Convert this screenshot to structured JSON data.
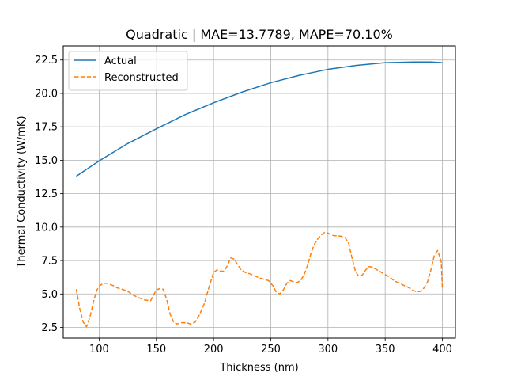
{
  "chart_data": {
    "type": "line",
    "title": "Quadratic | MAE=13.7789, MAPE=70.10%",
    "xlabel": "Thickness (nm)",
    "ylabel": "Thermal Conductivity (W/mK)",
    "xlim": [
      68.6,
      411.4
    ],
    "ylim": [
      1.7,
      23.55
    ],
    "xticks": [
      100,
      150,
      200,
      250,
      300,
      350,
      400
    ],
    "yticks": [
      2.5,
      5.0,
      7.5,
      10.0,
      12.5,
      15.0,
      17.5,
      20.0,
      22.5
    ],
    "ytick_labels": [
      "2.5",
      "5.0",
      "7.5",
      "10.0",
      "12.5",
      "15.0",
      "17.5",
      "20.0",
      "22.5"
    ],
    "grid": true,
    "legend_position": "top-left",
    "series": [
      {
        "name": "Actual",
        "color": "#1f77b4",
        "style": "solid",
        "x": [
          80,
          100,
          125,
          150,
          175,
          200,
          225,
          250,
          275,
          300,
          325,
          350,
          375,
          390,
          400
        ],
        "y": [
          13.8,
          14.95,
          16.25,
          17.35,
          18.4,
          19.3,
          20.1,
          20.8,
          21.35,
          21.8,
          22.1,
          22.3,
          22.35,
          22.35,
          22.3
        ]
      },
      {
        "name": "Reconstructed",
        "color": "#ff7f0e",
        "style": "dashed",
        "x": [
          80,
          83,
          86,
          89,
          92,
          95,
          98,
          101,
          104,
          107,
          110,
          113,
          116,
          120,
          125,
          130,
          135,
          140,
          145,
          150,
          153,
          156,
          159,
          162,
          165,
          168,
          172,
          176,
          180,
          184,
          188,
          192,
          196,
          200,
          203,
          206,
          209,
          212,
          215,
          218,
          221,
          224,
          228,
          232,
          236,
          240,
          244,
          248,
          252,
          255,
          258,
          261,
          264,
          267,
          270,
          273,
          276,
          279,
          282,
          285,
          288,
          291,
          294,
          297,
          300,
          303,
          306,
          309,
          312,
          315,
          318,
          321,
          324,
          327,
          330,
          333,
          336,
          339,
          342,
          345,
          348,
          351,
          354,
          357,
          360,
          363,
          366,
          369,
          372,
          375,
          378,
          381,
          384,
          387,
          390,
          393,
          396,
          399,
          400
        ],
        "y": [
          5.35,
          3.9,
          2.9,
          2.55,
          3.3,
          4.4,
          5.3,
          5.65,
          5.8,
          5.8,
          5.7,
          5.6,
          5.45,
          5.35,
          5.2,
          4.9,
          4.7,
          4.55,
          4.5,
          5.3,
          5.4,
          5.35,
          4.6,
          3.5,
          2.9,
          2.75,
          2.85,
          2.85,
          2.75,
          2.9,
          3.5,
          4.3,
          5.5,
          6.6,
          6.8,
          6.7,
          6.7,
          7.1,
          7.7,
          7.6,
          7.2,
          6.8,
          6.6,
          6.5,
          6.35,
          6.2,
          6.1,
          6.0,
          5.6,
          5.1,
          5.0,
          5.3,
          5.8,
          6.0,
          5.9,
          5.85,
          6.0,
          6.4,
          7.1,
          8.0,
          8.7,
          9.1,
          9.4,
          9.6,
          9.55,
          9.4,
          9.35,
          9.35,
          9.3,
          9.2,
          8.8,
          7.7,
          6.7,
          6.3,
          6.4,
          6.8,
          7.05,
          7.0,
          6.85,
          6.7,
          6.55,
          6.4,
          6.25,
          6.05,
          5.9,
          5.8,
          5.65,
          5.55,
          5.4,
          5.25,
          5.15,
          5.2,
          5.45,
          5.9,
          6.8,
          7.9,
          8.25,
          7.4,
          5.4
        ]
      }
    ]
  }
}
